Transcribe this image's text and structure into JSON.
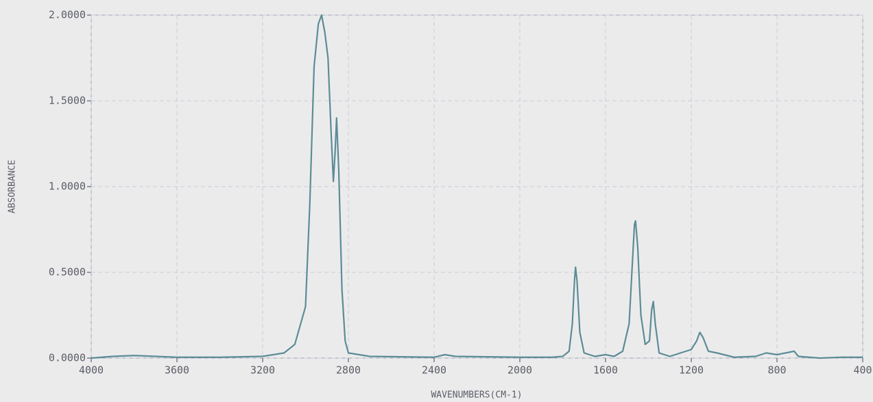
{
  "chart_data": {
    "type": "line",
    "x_label": "WAVENUMBERS(CM-1)",
    "y_label": "ABSORBANCE",
    "x": [
      4000,
      3900,
      3800,
      3700,
      3600,
      3400,
      3200,
      3100,
      3050,
      3000,
      2980,
      2960,
      2940,
      2925,
      2910,
      2895,
      2880,
      2870,
      2862,
      2855,
      2845,
      2830,
      2815,
      2800,
      2700,
      2400,
      2350,
      2300,
      2000,
      1850,
      1800,
      1770,
      1755,
      1745,
      1740,
      1733,
      1720,
      1700,
      1650,
      1600,
      1560,
      1520,
      1490,
      1475,
      1465,
      1460,
      1450,
      1435,
      1415,
      1395,
      1385,
      1377,
      1368,
      1350,
      1300,
      1250,
      1200,
      1175,
      1160,
      1145,
      1120,
      1080,
      1000,
      900,
      850,
      800,
      760,
      720,
      700,
      600,
      500,
      400
    ],
    "values": [
      0.0,
      0.01,
      0.015,
      0.01,
      0.005,
      0.005,
      0.01,
      0.03,
      0.08,
      0.3,
      0.9,
      1.7,
      1.95,
      2.0,
      1.9,
      1.75,
      1.3,
      1.03,
      1.2,
      1.4,
      1.1,
      0.4,
      0.1,
      0.03,
      0.01,
      0.005,
      0.02,
      0.01,
      0.005,
      0.005,
      0.01,
      0.04,
      0.2,
      0.45,
      0.53,
      0.45,
      0.15,
      0.03,
      0.01,
      0.02,
      0.01,
      0.04,
      0.2,
      0.55,
      0.78,
      0.8,
      0.65,
      0.25,
      0.08,
      0.1,
      0.28,
      0.33,
      0.2,
      0.03,
      0.01,
      0.03,
      0.05,
      0.1,
      0.15,
      0.12,
      0.04,
      0.03,
      0.005,
      0.01,
      0.03,
      0.02,
      0.03,
      0.04,
      0.01,
      0.0,
      0.005,
      0.005
    ],
    "color": "#5b8c96",
    "xlim": [
      4000,
      400
    ],
    "xticks": [
      4000,
      3600,
      3200,
      2800,
      2400,
      2000,
      1600,
      1200,
      800,
      400
    ],
    "ylim": [
      0,
      2
    ],
    "yticks": [
      {
        "value": 0,
        "label": "0.0000"
      },
      {
        "value": 0.5,
        "label": "0.5000"
      },
      {
        "value": 1,
        "label": "1.0000"
      },
      {
        "value": 1.5,
        "label": "1.5000"
      },
      {
        "value": 2,
        "label": "2.0000"
      }
    ],
    "grid": true
  }
}
